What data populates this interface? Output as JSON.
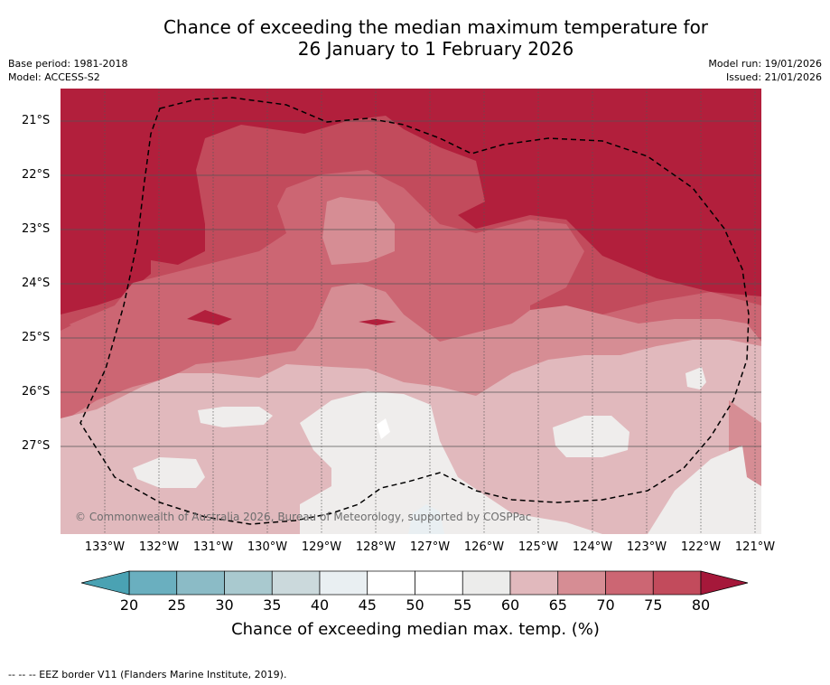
{
  "header": {
    "title_line1": "Chance of exceeding the median maximum temperature for",
    "title_line2": "26 January to 1 February 2026",
    "base_period": "Base period: 1981-2018",
    "model": "Model: ACCESS-S2",
    "model_run": "Model run: 19/01/2026",
    "issued": "Issued: 21/01/2026"
  },
  "map": {
    "lat_labels": [
      "21°S",
      "22°S",
      "23°S",
      "24°S",
      "25°S",
      "26°S",
      "27°S"
    ],
    "lon_labels": [
      "133°W",
      "132°W",
      "131°W",
      "130°W",
      "129°W",
      "128°W",
      "127°W",
      "126°W",
      "125°W",
      "124°W",
      "123°W",
      "122°W",
      "121°W"
    ],
    "copyright": "© Commonwealth of Australia 2026, Bureau of Meteorology, supported by COSPPac",
    "colors": {
      "c75_80": "#b21f3c",
      "c70_75": "#c24b5c",
      "c65_70": "#cc6673",
      "c60_65": "#d68d94",
      "c55_60": "#e1b9bd",
      "c50_55": "#efedec",
      "c45_50": "#ffffff",
      "c40_45": "#e9eff2"
    }
  },
  "colorbar": {
    "ticks": [
      "20",
      "25",
      "30",
      "35",
      "40",
      "45",
      "50",
      "55",
      "60",
      "65",
      "70",
      "75",
      "80"
    ],
    "colors": [
      "#6aafbf",
      "#8bbbc6",
      "#a9c9cf",
      "#cbd9dc",
      "#e9eff2",
      "#ffffff",
      "#ffffff",
      "#ececeb",
      "#e1b9bd",
      "#d68d94",
      "#cc6673",
      "#c24b5c"
    ],
    "low_extend_color": "#4aa2b3",
    "high_extend_color": "#a5183a",
    "label": "Chance of exceeding median max. temp. (%)"
  },
  "footnote": "--  --  -- EEZ border V11 (Flanders Marine Institute, 2019)."
}
